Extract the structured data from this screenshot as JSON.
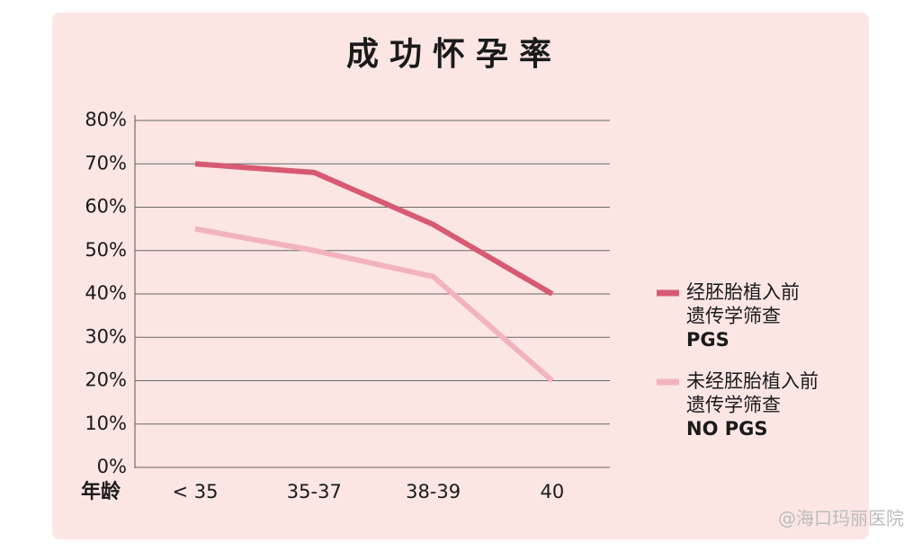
{
  "chart_data": {
    "type": "line",
    "title": "成功怀孕率",
    "x_label": "年龄",
    "categories": [
      "< 35",
      "35-37",
      "38-39",
      "40"
    ],
    "series": [
      {
        "name": "经胚胎植入前\n遗传学筛查\nPGS",
        "color": "#d85a72",
        "values": [
          70,
          68,
          56,
          40
        ]
      },
      {
        "name": "未经胚胎植入前\n遗传学筛查\nNO PGS",
        "color": "#f2b3bf",
        "values": [
          55,
          50,
          44,
          20
        ]
      }
    ],
    "ylim": [
      0,
      80
    ],
    "yticks": [
      {
        "value": 0,
        "label": "0%"
      },
      {
        "value": 10,
        "label": "10%"
      },
      {
        "value": 20,
        "label": "20%"
      },
      {
        "value": 30,
        "label": "30%"
      },
      {
        "value": 40,
        "label": "40%"
      },
      {
        "value": 50,
        "label": "50%"
      },
      {
        "value": 60,
        "label": "60%"
      },
      {
        "value": 70,
        "label": "70%"
      },
      {
        "value": 80,
        "label": "80%"
      }
    ],
    "grid": true,
    "legend": "right",
    "watermark": "@海口玛丽医院"
  }
}
